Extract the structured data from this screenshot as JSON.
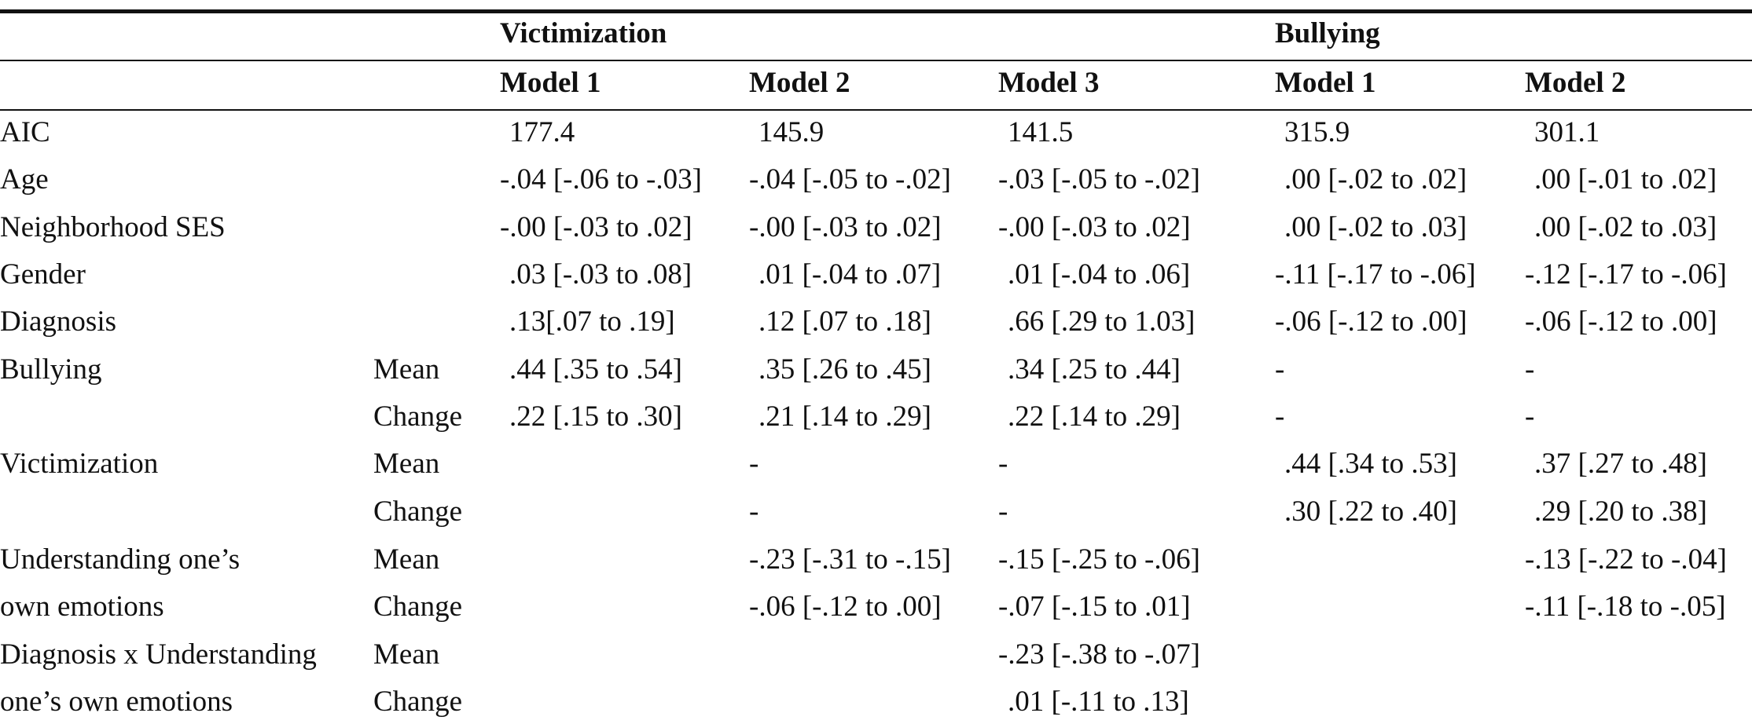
{
  "table": {
    "group_headers": {
      "victimization": "Victimization",
      "bullying": "Bullying"
    },
    "model_headers": [
      "Model 1",
      "Model 2",
      "Model 3",
      "Model 1",
      "Model 2"
    ],
    "rows": [
      {
        "label": "AIC",
        "sub": "",
        "cells": [
          "177.4",
          "145.9",
          "141.5",
          "315.9",
          "301.1"
        ]
      },
      {
        "label": "Age",
        "sub": "",
        "cells": [
          "-.04 [-.06 to -.03]",
          "-.04 [-.05 to -.02]",
          "-.03 [-.05 to -.02]",
          ".00 [-.02 to .02]",
          ".00 [-.01 to .02]"
        ]
      },
      {
        "label": "Neighborhood SES",
        "sub": "",
        "cells": [
          "-.00 [-.03 to .02]",
          "-.00 [-.03 to .02]",
          "-.00 [-.03 to .02]",
          ".00 [-.02 to .03]",
          ".00 [-.02 to .03]"
        ]
      },
      {
        "label": "Gender",
        "sub": "",
        "cells": [
          ".03 [-.03 to .08]",
          ".01 [-.04 to .07]",
          ".01 [-.04 to .06]",
          "-.11 [-.17 to -.06]",
          "-.12 [-.17 to -.06]"
        ]
      },
      {
        "label": "Diagnosis",
        "sub": "",
        "cells": [
          ".13[.07 to .19]",
          ".12 [.07 to .18]",
          ".66 [.29 to 1.03]",
          "-.06 [-.12 to .00]",
          "-.06 [-.12 to .00]"
        ]
      },
      {
        "label": "Bullying",
        "sub": "Mean",
        "cells": [
          ".44 [.35 to .54]",
          ".35 [.26 to .45]",
          ".34 [.25 to .44]",
          "-",
          "-"
        ]
      },
      {
        "label": "",
        "sub": "Change",
        "cells": [
          ".22 [.15 to .30]",
          ".21 [.14 to .29]",
          ".22 [.14 to .29]",
          "-",
          "-"
        ]
      },
      {
        "label": "Victimization",
        "sub": "Mean",
        "cells": [
          "",
          "-",
          "-",
          ".44 [.34 to .53]",
          ".37 [.27 to .48]"
        ]
      },
      {
        "label": "",
        "sub": "Change",
        "cells": [
          "",
          "-",
          "-",
          ".30 [.22 to .40]",
          ".29 [.20 to .38]"
        ]
      },
      {
        "label": "Understanding one’s",
        "sub": "Mean",
        "cells": [
          "",
          "-.23 [-.31 to -.15]",
          "-.15 [-.25 to -.06]",
          "",
          "-.13 [-.22 to -.04]"
        ]
      },
      {
        "label": "own emotions",
        "sub": "Change",
        "cells": [
          "",
          "-.06 [-.12 to .00]",
          "-.07 [-.15 to .01]",
          "",
          "-.11 [-.18 to -.05]"
        ]
      },
      {
        "label": "Diagnosis x Understanding",
        "sub": "Mean",
        "cells": [
          "",
          "",
          "-.23 [-.38 to -.07]",
          "",
          ""
        ]
      },
      {
        "label": "one’s own emotions",
        "sub": "Change",
        "cells": [
          "",
          "",
          ".01 [-.11 to .13]",
          "",
          ""
        ]
      }
    ]
  }
}
